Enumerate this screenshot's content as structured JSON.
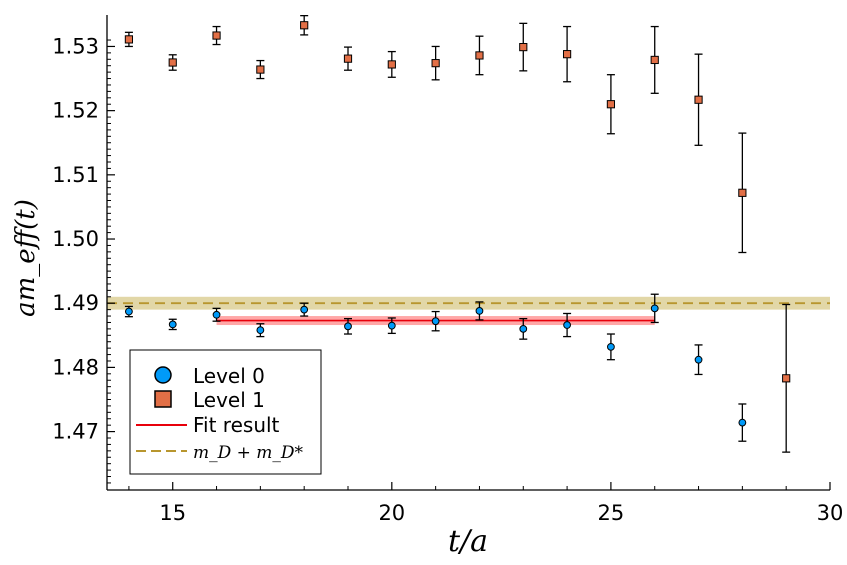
{
  "chart_data": {
    "type": "scatter",
    "xlabel": "t/a",
    "ylabel": "am_eff(t)",
    "xlim": [
      13.5,
      30
    ],
    "ylim": [
      1.4609,
      1.5349
    ],
    "x_ticks": [
      15,
      20,
      25,
      30
    ],
    "y_ticks": [
      1.47,
      1.48,
      1.49,
      1.5,
      1.51,
      1.52,
      1.53
    ],
    "x_tick_labels": [
      "15",
      "20",
      "25",
      "30"
    ],
    "y_tick_labels": [
      "1.47",
      "1.48",
      "1.49",
      "1.50",
      "1.51",
      "1.52",
      "1.53"
    ],
    "grid": false,
    "legend_position": "bottom-left",
    "series": [
      {
        "name": "Level 0",
        "marker": "circle",
        "color": "#009af9",
        "points": [
          {
            "x": 14,
            "y": 1.4887,
            "err": 0.0008
          },
          {
            "x": 15,
            "y": 1.4867,
            "err": 0.0008
          },
          {
            "x": 16,
            "y": 1.4882,
            "err": 0.001
          },
          {
            "x": 17,
            "y": 1.4858,
            "err": 0.001
          },
          {
            "x": 18,
            "y": 1.489,
            "err": 0.001
          },
          {
            "x": 19,
            "y": 1.4864,
            "err": 0.0012
          },
          {
            "x": 20,
            "y": 1.4865,
            "err": 0.0012
          },
          {
            "x": 21,
            "y": 1.4872,
            "err": 0.0015
          },
          {
            "x": 22,
            "y": 1.4888,
            "err": 0.0014
          },
          {
            "x": 23,
            "y": 1.486,
            "err": 0.0016
          },
          {
            "x": 24,
            "y": 1.4866,
            "err": 0.0018
          },
          {
            "x": 25,
            "y": 1.4832,
            "err": 0.002
          },
          {
            "x": 26,
            "y": 1.4892,
            "err": 0.0022
          },
          {
            "x": 27,
            "y": 1.4812,
            "err": 0.0023
          },
          {
            "x": 28,
            "y": 1.4714,
            "err": 0.0029
          }
        ]
      },
      {
        "name": "Level 1",
        "marker": "square",
        "color": "#e26f46",
        "points": [
          {
            "x": 14,
            "y": 1.5311,
            "err": 0.0011
          },
          {
            "x": 15,
            "y": 1.5275,
            "err": 0.0012
          },
          {
            "x": 16,
            "y": 1.5317,
            "err": 0.0014
          },
          {
            "x": 17,
            "y": 1.5264,
            "err": 0.0014
          },
          {
            "x": 18,
            "y": 1.5333,
            "err": 0.0015
          },
          {
            "x": 19,
            "y": 1.5281,
            "err": 0.0018
          },
          {
            "x": 20,
            "y": 1.5272,
            "err": 0.002
          },
          {
            "x": 21,
            "y": 1.5274,
            "err": 0.0026
          },
          {
            "x": 22,
            "y": 1.5286,
            "err": 0.003
          },
          {
            "x": 23,
            "y": 1.5299,
            "err": 0.0037
          },
          {
            "x": 24,
            "y": 1.5288,
            "err": 0.0043
          },
          {
            "x": 25,
            "y": 1.521,
            "err": 0.0046
          },
          {
            "x": 26,
            "y": 1.5279,
            "err": 0.0052
          },
          {
            "x": 27,
            "y": 1.5217,
            "err": 0.0071
          },
          {
            "x": 28,
            "y": 1.5072,
            "err": 0.0093
          },
          {
            "x": 29,
            "y": 1.4783,
            "err": 0.0115
          }
        ]
      }
    ],
    "fit": {
      "name": "Fit result",
      "color": "#e8000b",
      "band_color": "#ff8a8a",
      "x_range": [
        16,
        26
      ],
      "value": 1.4873,
      "err": 0.0007
    },
    "threshold": {
      "name": "m_D + m_D*",
      "color": "#b8962e",
      "band_color": "#d8c98a",
      "value": 1.49,
      "err": 0.001
    }
  }
}
